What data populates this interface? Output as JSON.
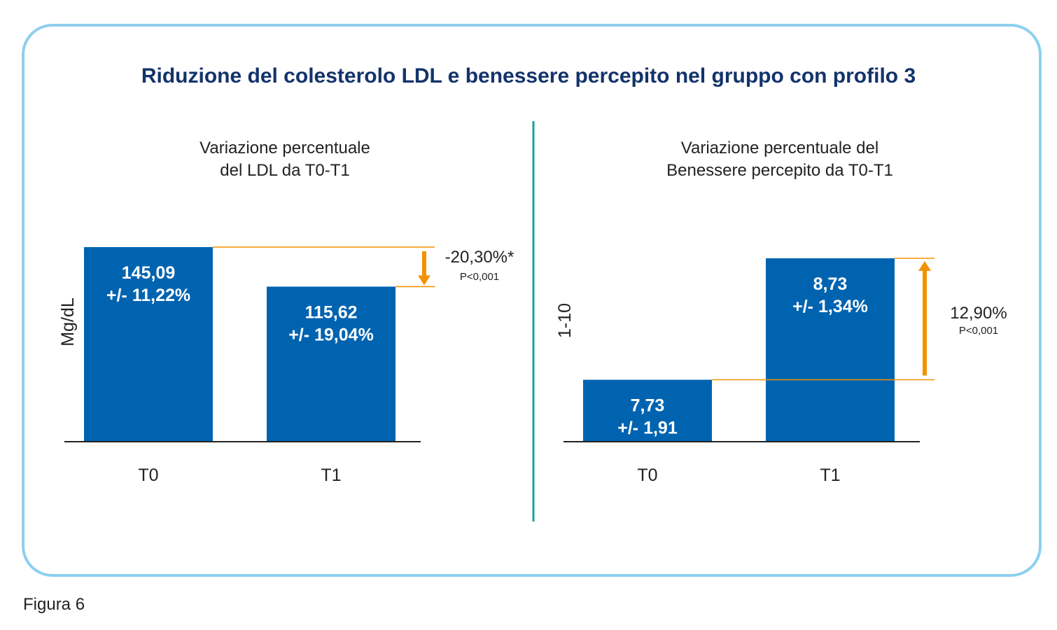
{
  "title": "Riduzione del colesterolo LDL e benessere percepito nel gruppo con profilo 3",
  "caption": "Figura 6",
  "colors": {
    "bar": "#0063b0",
    "accent": "#f39200",
    "divider": "#1aa09a",
    "frame": "#8ecfef",
    "title": "#13336b"
  },
  "chart_data": [
    {
      "type": "bar",
      "title_lines": [
        "Variazione percentuale",
        "del LDL da T0-T1"
      ],
      "ylabel": "Mg/dL",
      "categories": [
        "T0",
        "T1"
      ],
      "values": [
        145.09,
        115.62
      ],
      "bar_labels": [
        [
          "145,09",
          "+/- 11,22%"
        ],
        [
          "115,62",
          "+/- 19,04%"
        ]
      ],
      "change": {
        "label": "-20,30%*",
        "p": "P<0,001",
        "direction": "down"
      },
      "ylim": [
        0,
        150
      ],
      "grid": false
    },
    {
      "type": "bar",
      "title_lines": [
        "Variazione percentuale del",
        "Benessere percepito da T0-T1"
      ],
      "ylabel": "1-10",
      "categories": [
        "T0",
        "T1"
      ],
      "values": [
        7.73,
        8.73
      ],
      "bar_labels": [
        [
          "7,73",
          "+/- 1,91"
        ],
        [
          "8,73",
          "+/- 1,34%"
        ]
      ],
      "change": {
        "label": "12,90%",
        "p": "P<0,001",
        "direction": "up"
      },
      "ylim": [
        7.22,
        8.82
      ],
      "grid": false
    }
  ]
}
